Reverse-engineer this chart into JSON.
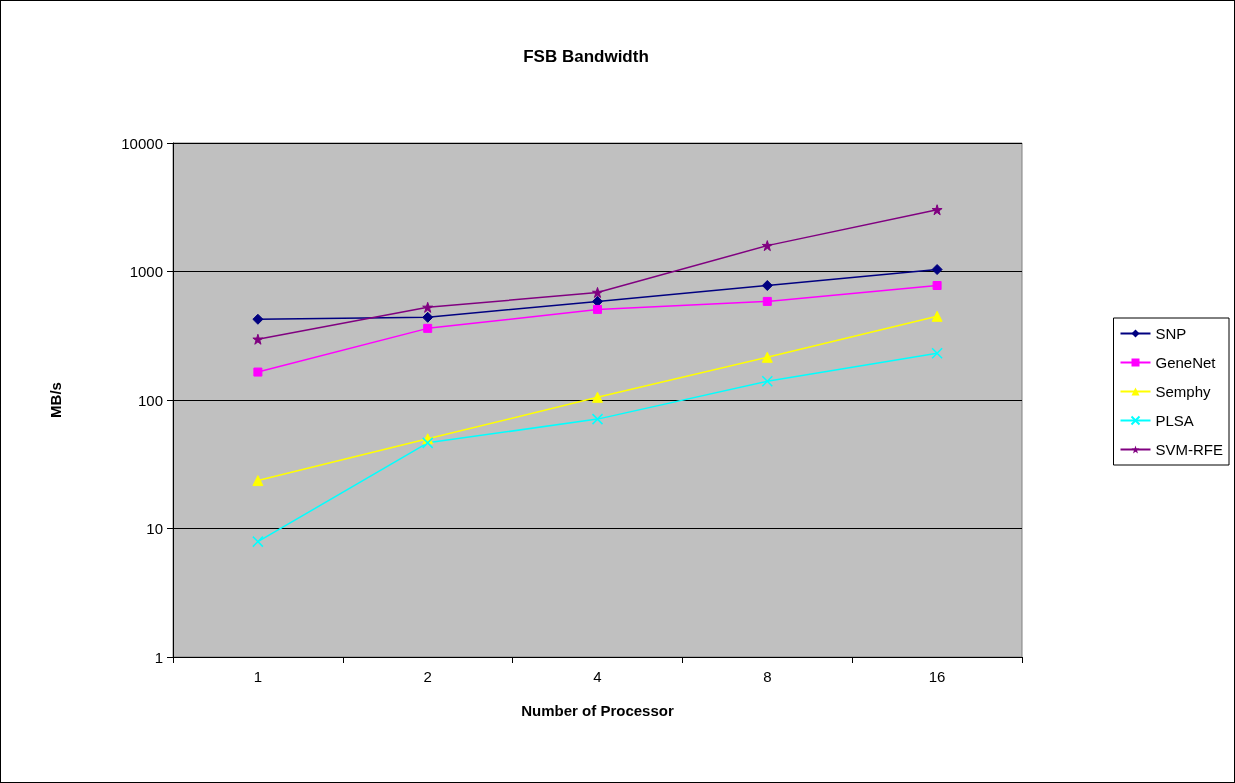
{
  "chart_data": {
    "type": "line",
    "title": "FSB Bandwidth",
    "xlabel": "Number of Processor",
    "ylabel": "MB/s",
    "categories": [
      "1",
      "2",
      "4",
      "8",
      "16"
    ],
    "series": [
      {
        "name": "SNP",
        "color": "#000080",
        "marker": "diamond",
        "values": [
          425,
          440,
          585,
          778,
          1036
        ]
      },
      {
        "name": "GeneNet",
        "color": "#ff00ff",
        "marker": "square",
        "values": [
          165,
          361,
          507,
          585,
          778
        ]
      },
      {
        "name": "Semphy",
        "color": "#ffff00",
        "marker": "triangle",
        "values": [
          23.6,
          49.9,
          105,
          215,
          448
        ]
      },
      {
        "name": "PLSA",
        "color": "#00ffff",
        "marker": "cross",
        "values": [
          7.9,
          46.4,
          71,
          140,
          231
        ]
      },
      {
        "name": "SVM-RFE",
        "color": "#800080",
        "marker": "star",
        "values": [
          297,
          526,
          687,
          1590,
          3024
        ]
      }
    ],
    "log": "y",
    "ylim": [
      1,
      10000
    ],
    "yticks": [
      1,
      10,
      100,
      1000,
      10000
    ],
    "grid": "y",
    "legend": "right",
    "line_style": "solid"
  }
}
